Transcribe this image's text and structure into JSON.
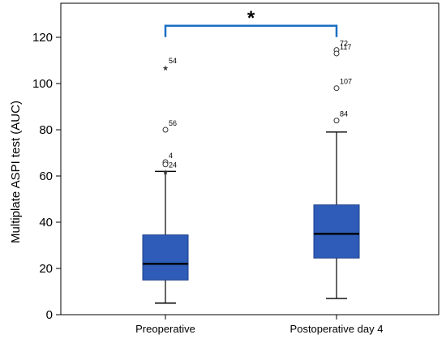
{
  "chart_data": {
    "type": "boxplot",
    "ylabel": "Multiplate ASPI test (AUC)",
    "ylim": [
      0,
      130
    ],
    "yticks": [
      0,
      20,
      40,
      60,
      80,
      100,
      120
    ],
    "categories": [
      "Preoperative",
      "Postoperative day 4"
    ],
    "boxes": [
      {
        "category": "Preoperative",
        "whisker_low": 5,
        "q1": 15,
        "median": 22,
        "q3": 34.5,
        "whisker_high": 62,
        "outliers": [
          {
            "label": "54",
            "value": 107,
            "marker": "star"
          },
          {
            "label": "56",
            "value": 80,
            "marker": "circle"
          },
          {
            "label": "4",
            "value": 66,
            "marker": "circle"
          },
          {
            "label": "",
            "value": 65,
            "marker": "circle"
          },
          {
            "label": "24",
            "value": 62,
            "marker": "star"
          }
        ]
      },
      {
        "category": "Postoperative day 4",
        "whisker_low": 7,
        "q1": 24.5,
        "median": 35,
        "q3": 47.5,
        "whisker_high": 79,
        "outliers": [
          {
            "label": "72",
            "value": 114.5,
            "marker": "circle"
          },
          {
            "label": "117",
            "value": 113,
            "marker": "circle"
          },
          {
            "label": "107",
            "value": 98,
            "marker": "circle"
          },
          {
            "label": "84",
            "value": 84,
            "marker": "circle"
          }
        ]
      }
    ],
    "significance": {
      "label": "*",
      "between": [
        "Preoperative",
        "Postoperative day 4"
      ],
      "value": 125
    },
    "colors": {
      "box_fill": "#2e5cb8",
      "box_stroke": "#1f3f8a",
      "bracket": "#1a6fc4"
    }
  }
}
